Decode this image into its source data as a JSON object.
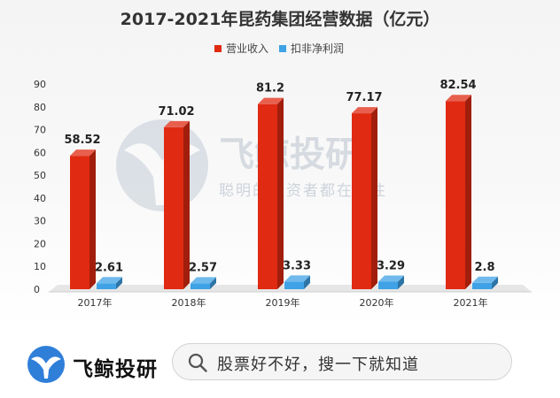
{
  "chart_data": {
    "type": "bar",
    "title": "2017-2021年昆药集团经营数据（亿元）",
    "categories": [
      "2017年",
      "2018年",
      "2019年",
      "2020年",
      "2021年"
    ],
    "series": [
      {
        "name": "营业收入",
        "values": [
          58.52,
          71.02,
          81.2,
          77.17,
          82.54
        ],
        "color": "#e02a12",
        "labels": [
          "58.52",
          "71.02",
          "81.2",
          "77.17",
          "82.54"
        ]
      },
      {
        "name": "扣非净利润",
        "values": [
          2.61,
          2.57,
          3.33,
          3.29,
          2.8
        ],
        "color": "#3fa2e6",
        "labels": [
          "2.61",
          "2.57",
          "3.33",
          "3.29",
          "2.8"
        ]
      }
    ],
    "ylim": [
      0,
      90
    ],
    "yticks": [
      0,
      10,
      20,
      30,
      40,
      50,
      60,
      70,
      80,
      90
    ],
    "grid": false,
    "legend_position": "top-right"
  },
  "watermark": {
    "title": "飞鲸投研",
    "subtitle": "聪明的投资者都在关注"
  },
  "footer": {
    "brand_name": "飞鲸投研",
    "search_text": "股票好不好，搜一下就知道",
    "logo_icon": "whale-tail-icon",
    "search_icon": "magnifier-icon",
    "brand_color": "#2f7fd9"
  }
}
